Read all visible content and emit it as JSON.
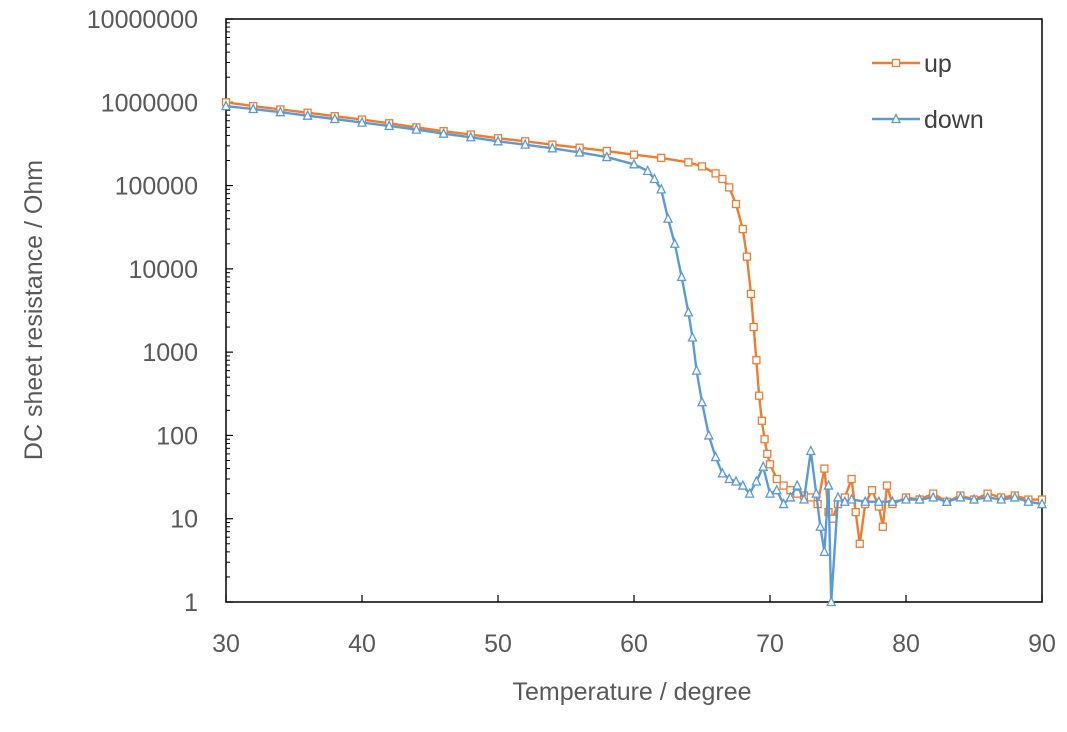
{
  "chart_data": {
    "type": "scatter",
    "xlabel": "Temperature  / degree",
    "ylabel": "DC sheet resistance / Ohm",
    "xlim": [
      30,
      90
    ],
    "ylim": [
      1,
      10000000
    ],
    "yscale": "log",
    "xticks": [
      30,
      40,
      50,
      60,
      70,
      80,
      90
    ],
    "yticks": [
      1,
      10,
      100,
      1000,
      10000,
      100000,
      1000000,
      10000000
    ],
    "xtick_labels": [
      "30",
      "40",
      "50",
      "60",
      "70",
      "80",
      "90"
    ],
    "ytick_labels": [
      "1",
      "10",
      "100",
      "1000",
      "10000",
      "100000",
      "1000000",
      "10000000"
    ],
    "grid": false,
    "legend_position": "top-right",
    "series": [
      {
        "name": "up",
        "color": "#ED7D31",
        "marker": "square",
        "points": [
          [
            30,
            1000000
          ],
          [
            32,
            900000
          ],
          [
            34,
            820000
          ],
          [
            36,
            750000
          ],
          [
            38,
            680000
          ],
          [
            40,
            620000
          ],
          [
            42,
            560000
          ],
          [
            44,
            500000
          ],
          [
            46,
            450000
          ],
          [
            48,
            410000
          ],
          [
            50,
            370000
          ],
          [
            52,
            340000
          ],
          [
            54,
            310000
          ],
          [
            56,
            285000
          ],
          [
            58,
            260000
          ],
          [
            60,
            235000
          ],
          [
            62,
            215000
          ],
          [
            64,
            190000
          ],
          [
            65,
            170000
          ],
          [
            66,
            140000
          ],
          [
            66.5,
            120000
          ],
          [
            67,
            95000
          ],
          [
            67.5,
            60000
          ],
          [
            68,
            30000
          ],
          [
            68.3,
            14000
          ],
          [
            68.6,
            5000
          ],
          [
            68.8,
            2000
          ],
          [
            69,
            800
          ],
          [
            69.2,
            300
          ],
          [
            69.4,
            150
          ],
          [
            69.6,
            90
          ],
          [
            69.8,
            60
          ],
          [
            70,
            45
          ],
          [
            70.5,
            30
          ],
          [
            71,
            25
          ],
          [
            71.5,
            22
          ],
          [
            72,
            20
          ],
          [
            72.5,
            19
          ],
          [
            73,
            18
          ],
          [
            73.5,
            15
          ],
          [
            74,
            40
          ],
          [
            74.3,
            12
          ],
          [
            74.6,
            10
          ],
          [
            75,
            15
          ],
          [
            75.5,
            18
          ],
          [
            76,
            30
          ],
          [
            76.3,
            12
          ],
          [
            76.6,
            5
          ],
          [
            77,
            15
          ],
          [
            77.5,
            22
          ],
          [
            78,
            14
          ],
          [
            78.3,
            8
          ],
          [
            78.6,
            25
          ],
          [
            79,
            15
          ],
          [
            80,
            18
          ],
          [
            81,
            17
          ],
          [
            82,
            20
          ],
          [
            83,
            16
          ],
          [
            84,
            19
          ],
          [
            85,
            17
          ],
          [
            86,
            20
          ],
          [
            87,
            18
          ],
          [
            88,
            19
          ],
          [
            89,
            17
          ],
          [
            90,
            17
          ]
        ]
      },
      {
        "name": "down",
        "color": "#5B9BD5",
        "marker": "triangle",
        "points": [
          [
            30,
            900000
          ],
          [
            32,
            830000
          ],
          [
            34,
            760000
          ],
          [
            36,
            690000
          ],
          [
            38,
            630000
          ],
          [
            40,
            570000
          ],
          [
            42,
            520000
          ],
          [
            44,
            470000
          ],
          [
            46,
            420000
          ],
          [
            48,
            380000
          ],
          [
            50,
            340000
          ],
          [
            52,
            310000
          ],
          [
            54,
            280000
          ],
          [
            56,
            250000
          ],
          [
            58,
            220000
          ],
          [
            60,
            180000
          ],
          [
            61,
            150000
          ],
          [
            61.5,
            120000
          ],
          [
            62,
            90000
          ],
          [
            62.5,
            40000
          ],
          [
            63,
            20000
          ],
          [
            63.5,
            8000
          ],
          [
            64,
            3000
          ],
          [
            64.3,
            1500
          ],
          [
            64.6,
            600
          ],
          [
            65,
            250
          ],
          [
            65.5,
            100
          ],
          [
            66,
            55
          ],
          [
            66.5,
            35
          ],
          [
            67,
            30
          ],
          [
            67.5,
            28
          ],
          [
            68,
            25
          ],
          [
            68.5,
            20
          ],
          [
            69,
            28
          ],
          [
            69.5,
            42
          ],
          [
            70,
            20
          ],
          [
            70.5,
            22
          ],
          [
            71,
            15
          ],
          [
            71.5,
            18
          ],
          [
            72,
            25
          ],
          [
            72.5,
            17
          ],
          [
            73,
            65
          ],
          [
            73.4,
            20
          ],
          [
            73.7,
            8
          ],
          [
            74,
            4
          ],
          [
            74.3,
            25
          ],
          [
            74.5,
            1
          ],
          [
            75,
            18
          ],
          [
            75.5,
            16
          ],
          [
            76,
            17
          ],
          [
            77,
            16
          ],
          [
            78,
            16
          ],
          [
            79,
            16
          ],
          [
            80,
            17
          ],
          [
            81,
            17
          ],
          [
            82,
            18
          ],
          [
            83,
            16
          ],
          [
            84,
            18
          ],
          [
            85,
            17
          ],
          [
            86,
            18
          ],
          [
            87,
            17
          ],
          [
            88,
            18
          ],
          [
            89,
            16
          ],
          [
            90,
            15
          ]
        ]
      }
    ]
  }
}
